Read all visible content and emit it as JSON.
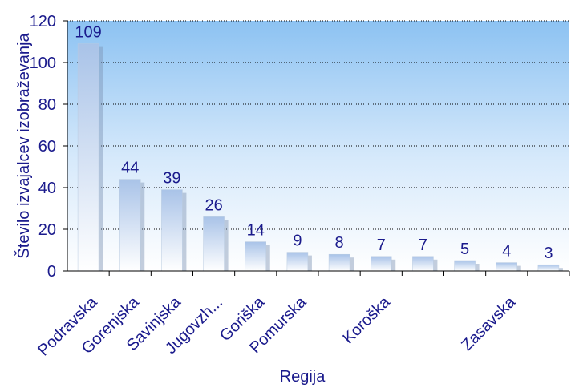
{
  "chart_data": {
    "type": "bar",
    "title": "",
    "xlabel": "Regija",
    "ylabel": "Število izvajalcev izobraževanja",
    "ylim": [
      0,
      120
    ],
    "yticks": [
      0,
      20,
      40,
      60,
      80,
      100,
      120
    ],
    "grid": true,
    "categories": [
      "Podravska",
      "Gorenjska",
      "Savinjska",
      "Jugovzh...",
      "Goriška",
      "Pomurska",
      "",
      "Koroška",
      "",
      "",
      "Zasavska",
      ""
    ],
    "values": [
      109,
      44,
      39,
      26,
      14,
      9,
      8,
      7,
      7,
      5,
      4,
      3
    ],
    "colors": {
      "label": "#1a1a8c",
      "plot_top": "#7fbaf0",
      "plot_bottom": "#ffffff",
      "bar_edge": "#b9cbe0"
    }
  }
}
